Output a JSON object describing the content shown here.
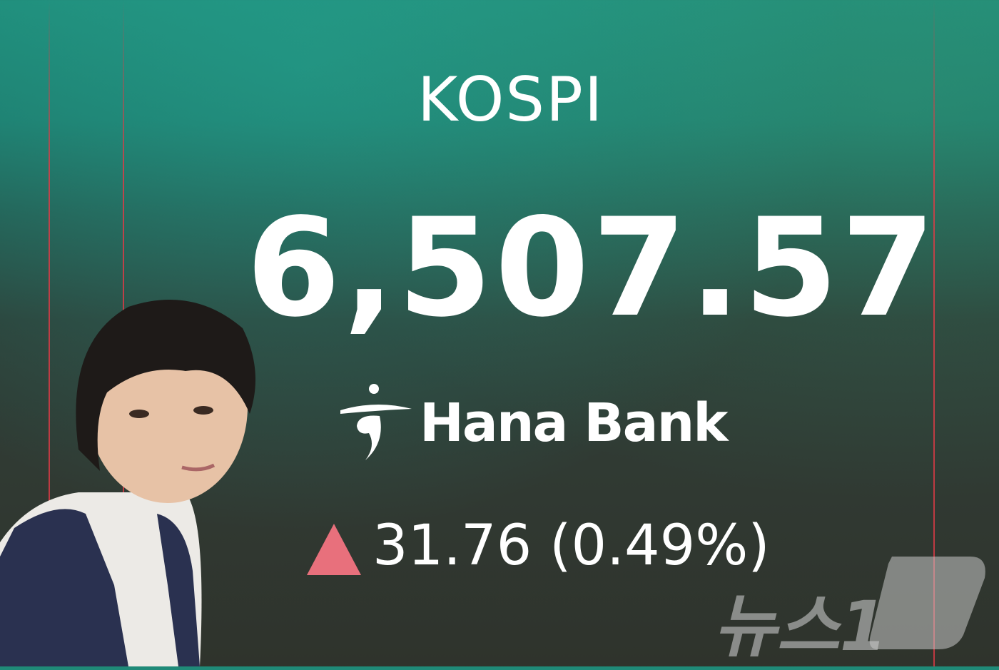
{
  "board": {
    "index_name": "KOSPI",
    "index_value": "6,507.57",
    "sponsor": "Hana Bank",
    "direction": "up",
    "change": "31.76 (0.49%)",
    "up_color": "#e8707c"
  },
  "watermark": {
    "text": "뉴스1"
  }
}
